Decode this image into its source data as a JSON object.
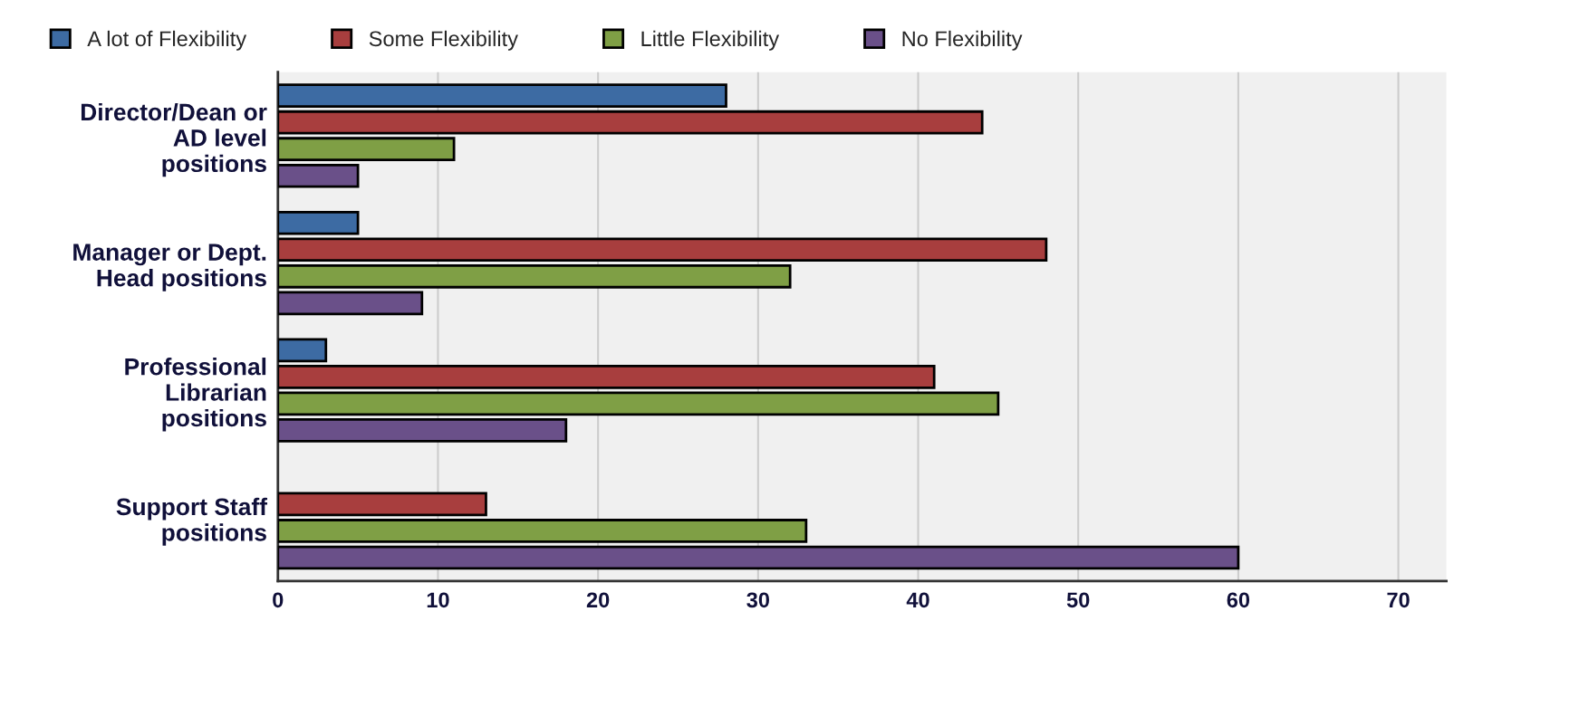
{
  "chart_data": {
    "type": "bar",
    "orientation": "horizontal",
    "categories": [
      "Director/Dean or\nAD level\npositions",
      "Manager or Dept.\nHead positions",
      "Professional\nLibrarian\npositions",
      "Support Staff\npositions"
    ],
    "series": [
      {
        "name": "A lot of Flexibility",
        "color": "#3d6ba3",
        "values": [
          28,
          5,
          3,
          null
        ]
      },
      {
        "name": "Some Flexibility",
        "color": "#a83e3e",
        "values": [
          44,
          48,
          41,
          13
        ]
      },
      {
        "name": "Little Flexibility",
        "color": "#7f9f45",
        "values": [
          11,
          32,
          45,
          33
        ]
      },
      {
        "name": "No Flexibility",
        "color": "#6a5089",
        "values": [
          5,
          9,
          18,
          60
        ]
      }
    ],
    "xlim": [
      0,
      73
    ],
    "xticks": [
      0,
      10,
      20,
      30,
      40,
      50,
      60,
      70
    ],
    "grid": "x",
    "legend": "top left"
  }
}
